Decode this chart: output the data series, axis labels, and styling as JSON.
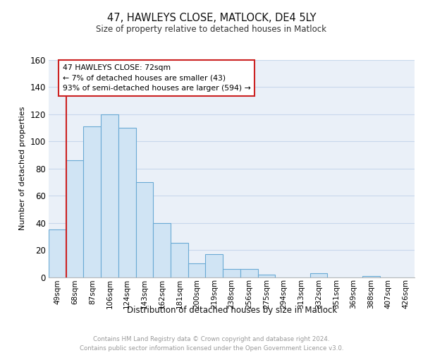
{
  "title": "47, HAWLEYS CLOSE, MATLOCK, DE4 5LY",
  "subtitle": "Size of property relative to detached houses in Matlock",
  "xlabel": "Distribution of detached houses by size in Matlock",
  "ylabel": "Number of detached properties",
  "bin_labels": [
    "49sqm",
    "68sqm",
    "87sqm",
    "106sqm",
    "124sqm",
    "143sqm",
    "162sqm",
    "181sqm",
    "200sqm",
    "219sqm",
    "238sqm",
    "256sqm",
    "275sqm",
    "294sqm",
    "313sqm",
    "332sqm",
    "351sqm",
    "369sqm",
    "388sqm",
    "407sqm",
    "426sqm"
  ],
  "bar_values": [
    35,
    86,
    111,
    120,
    110,
    70,
    40,
    25,
    10,
    17,
    6,
    6,
    2,
    0,
    0,
    3,
    0,
    0,
    1,
    0,
    0
  ],
  "bar_color": "#d0e4f4",
  "bar_edge_color": "#6aaad4",
  "vline_color": "#cc2222",
  "vline_x_index": 1,
  "annotation_text": "47 HAWLEYS CLOSE: 72sqm\n← 7% of detached houses are smaller (43)\n93% of semi-detached houses are larger (594) →",
  "annotation_box_facecolor": "#ffffff",
  "annotation_box_edgecolor": "#cc2222",
  "ylim": [
    0,
    160
  ],
  "yticks": [
    0,
    20,
    40,
    60,
    80,
    100,
    120,
    140,
    160
  ],
  "footer_text": "Contains HM Land Registry data © Crown copyright and database right 2024.\nContains public sector information licensed under the Open Government Licence v3.0.",
  "footer_color": "#999999",
  "grid_color": "#c8d8ec",
  "plot_bg_color": "#eaf0f8",
  "fig_bg_color": "#ffffff"
}
